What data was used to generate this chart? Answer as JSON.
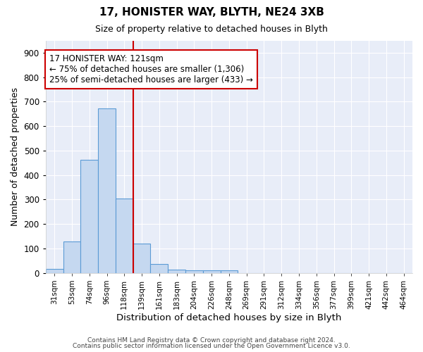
{
  "title1": "17, HONISTER WAY, BLYTH, NE24 3XB",
  "title2": "Size of property relative to detached houses in Blyth",
  "xlabel": "Distribution of detached houses by size in Blyth",
  "ylabel": "Number of detached properties",
  "bin_labels": [
    "31sqm",
    "53sqm",
    "74sqm",
    "96sqm",
    "118sqm",
    "139sqm",
    "161sqm",
    "183sqm",
    "204sqm",
    "226sqm",
    "248sqm",
    "269sqm",
    "291sqm",
    "312sqm",
    "334sqm",
    "356sqm",
    "377sqm",
    "399sqm",
    "421sqm",
    "442sqm",
    "464sqm"
  ],
  "bar_values": [
    18,
    128,
    462,
    672,
    305,
    120,
    37,
    15,
    12,
    10,
    12,
    0,
    0,
    0,
    0,
    0,
    0,
    0,
    0,
    0,
    0
  ],
  "bar_color": "#c5d8f0",
  "bar_edge_color": "#5b9bd5",
  "red_line_bin_index": 4,
  "annotation_line1": "17 HONISTER WAY: 121sqm",
  "annotation_line2": "← 75% of detached houses are smaller (1,306)",
  "annotation_line3": "25% of semi-detached houses are larger (433) →",
  "annotation_box_edge_color": "#cc0000",
  "ylim": [
    0,
    950
  ],
  "yticks": [
    0,
    100,
    200,
    300,
    400,
    500,
    600,
    700,
    800,
    900
  ],
  "background_color": "#e8edf8",
  "footer_text1": "Contains HM Land Registry data © Crown copyright and database right 2024.",
  "footer_text2": "Contains public sector information licensed under the Open Government Licence v3.0."
}
